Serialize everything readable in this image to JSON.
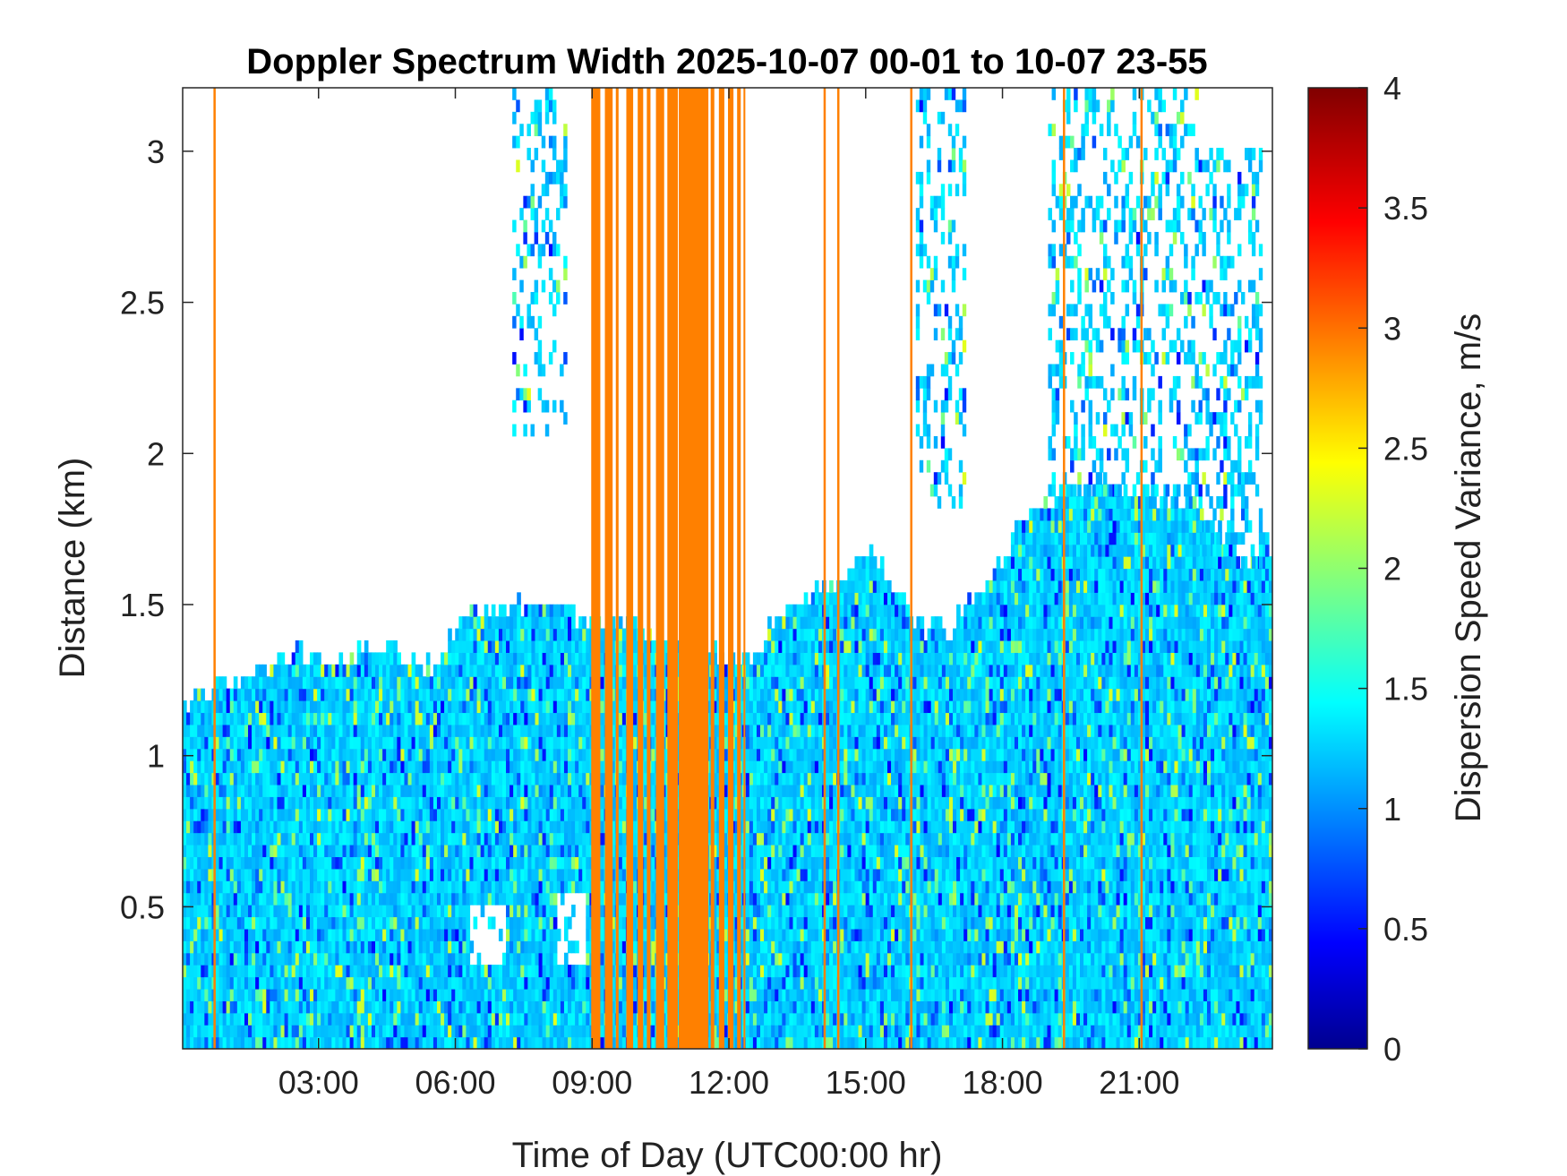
{
  "chart_data": {
    "type": "heatmap",
    "title": "Doppler Spectrum Width 2025-10-07 00-01 to 10-07 23-55",
    "xlabel": "Time of Day (UTC00:00 hr)",
    "ylabel": "Distance (km)",
    "colorbar_label": "Dispersion Speed Variance, m/s",
    "x_unit": "hours",
    "xlim": [
      0.02,
      23.92
    ],
    "ylim": [
      0.03,
      3.21
    ],
    "x_ticks": [
      {
        "value": 3,
        "label": "03:00"
      },
      {
        "value": 6,
        "label": "06:00"
      },
      {
        "value": 9,
        "label": "09:00"
      },
      {
        "value": 12,
        "label": "12:00"
      },
      {
        "value": 15,
        "label": "15:00"
      },
      {
        "value": 18,
        "label": "18:00"
      },
      {
        "value": 21,
        "label": "21:00"
      }
    ],
    "y_ticks": [
      {
        "value": 0.5,
        "label": "0.5"
      },
      {
        "value": 1,
        "label": "1"
      },
      {
        "value": 1.5,
        "label": "1.5"
      },
      {
        "value": 2,
        "label": "2"
      },
      {
        "value": 2.5,
        "label": "2.5"
      },
      {
        "value": 3,
        "label": "3"
      }
    ],
    "colorbar": {
      "colormap": "jet",
      "range": [
        0,
        4
      ],
      "ticks": [
        {
          "value": 0,
          "label": "0"
        },
        {
          "value": 0.5,
          "label": "0.5"
        },
        {
          "value": 1,
          "label": "1"
        },
        {
          "value": 1.5,
          "label": "1.5"
        },
        {
          "value": 2,
          "label": "2"
        },
        {
          "value": 2.5,
          "label": "2.5"
        },
        {
          "value": 3,
          "label": "3"
        },
        {
          "value": 3.5,
          "label": "3.5"
        },
        {
          "value": 4,
          "label": "4"
        }
      ]
    },
    "typical_value": 1.4,
    "boundary_layer_top_km": [
      [
        0.02,
        1.15
      ],
      [
        0.7,
        1.22
      ],
      [
        1.5,
        1.25
      ],
      [
        2.5,
        1.35
      ],
      [
        3.5,
        1.3
      ],
      [
        4.2,
        1.38
      ],
      [
        5.5,
        1.3
      ],
      [
        6.2,
        1.45
      ],
      [
        7.5,
        1.5
      ],
      [
        8.3,
        1.5
      ],
      [
        8.9,
        1.45
      ],
      [
        9.6,
        1.45
      ],
      [
        12.3,
        1.3
      ],
      [
        13.2,
        1.48
      ],
      [
        14.5,
        1.6
      ],
      [
        15.1,
        1.68
      ],
      [
        15.6,
        1.58
      ],
      [
        16.1,
        1.45
      ],
      [
        16.8,
        1.4
      ],
      [
        17.5,
        1.55
      ],
      [
        18.3,
        1.75
      ],
      [
        19.2,
        1.85
      ],
      [
        20.2,
        1.9
      ],
      [
        21.2,
        1.88
      ],
      [
        22.1,
        1.85
      ],
      [
        22.8,
        1.75
      ],
      [
        23.3,
        1.65
      ],
      [
        23.92,
        1.7
      ]
    ],
    "aloft_cloud_features": [
      {
        "x_start": 7.25,
        "x_end": 8.45,
        "y_bottom": 2.05,
        "y_top": 3.21
      },
      {
        "x_start": 16.1,
        "x_end": 17.2,
        "y_bottom": 1.8,
        "y_top": 3.21
      },
      {
        "x_start": 19.0,
        "x_end": 22.3,
        "y_bottom": 1.85,
        "y_top": 3.21
      },
      {
        "x_start": 22.3,
        "x_end": 23.7,
        "y_bottom": 1.6,
        "y_top": 3.0
      }
    ],
    "clear_gaps": [
      {
        "x_start": 6.3,
        "x_end": 7.1,
        "y_bottom": 0.32,
        "y_top": 0.52
      },
      {
        "x_start": 8.2,
        "x_end": 8.9,
        "y_bottom": 0.32,
        "y_top": 0.55
      }
    ],
    "saturated_bands": {
      "value": 3.0,
      "ranges": [
        [
          8.98,
          9.18
        ],
        [
          9.28,
          9.45
        ],
        [
          9.52,
          9.58
        ],
        [
          9.75,
          9.9
        ],
        [
          10.0,
          10.12
        ],
        [
          10.2,
          10.28
        ],
        [
          10.4,
          10.58
        ],
        [
          10.65,
          10.88
        ],
        [
          10.9,
          11.55
        ],
        [
          11.6,
          11.68
        ],
        [
          11.78,
          11.9
        ],
        [
          11.98,
          12.1
        ],
        [
          12.18,
          12.26
        ],
        [
          12.32,
          12.36
        ]
      ],
      "thin_lines": [
        0.72,
        14.1,
        14.4,
        16.0,
        19.35,
        21.05
      ]
    }
  }
}
